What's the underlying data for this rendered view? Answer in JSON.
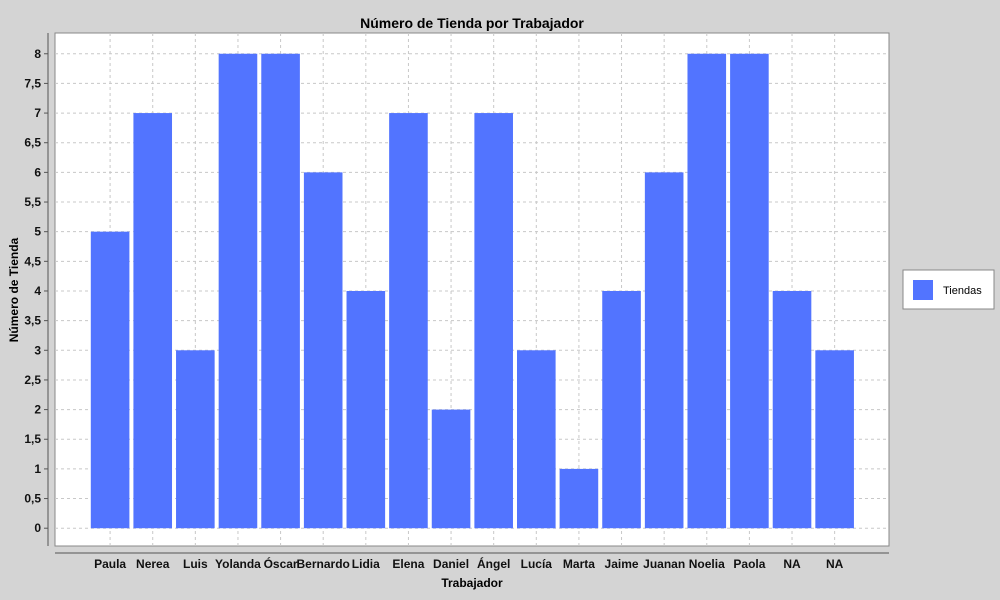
{
  "chart_data": {
    "type": "bar",
    "title": "Número de Tienda por Trabajador",
    "xlabel": "Trabajador",
    "ylabel": "Número de Tienda",
    "categories": [
      "Paula",
      "Nerea",
      "Luis",
      "Yolanda",
      "Óscar",
      "Bernardo",
      "Lidia",
      "Elena",
      "Daniel",
      "Ángel",
      "Lucía",
      "Marta",
      "Jaime",
      "Juanan",
      "Noelia",
      "Paola",
      "NA",
      "NA"
    ],
    "series": [
      {
        "name": "Tiendas",
        "color": "#5274ff",
        "values": [
          5,
          7,
          3,
          8,
          8,
          6,
          4,
          7,
          2,
          7,
          3,
          1,
          4,
          6,
          8,
          8,
          4,
          3
        ]
      }
    ],
    "yticks": [
      "0",
      "0,5",
      "1",
      "1,5",
      "2",
      "2,5",
      "3",
      "3,5",
      "4",
      "4,5",
      "5",
      "5,5",
      "6",
      "6,5",
      "7",
      "7,5",
      "8"
    ],
    "ylim": [
      -0.3,
      8.35
    ],
    "grid": true,
    "legend_position": "right"
  }
}
